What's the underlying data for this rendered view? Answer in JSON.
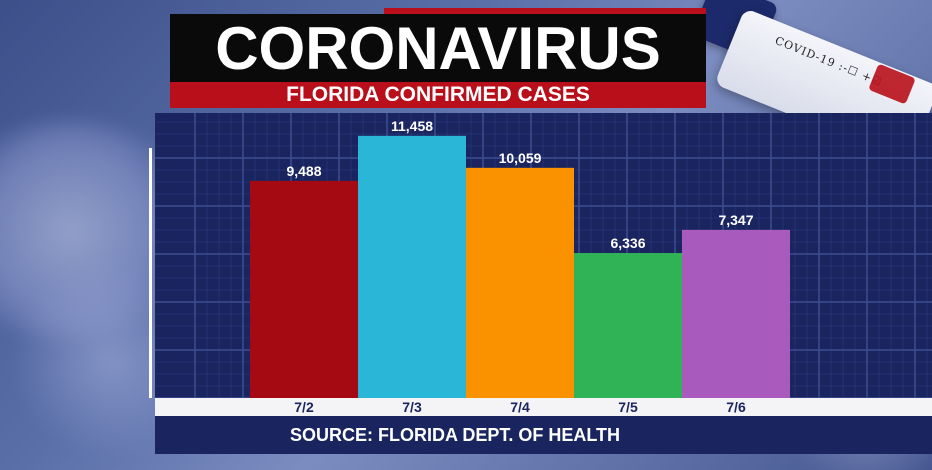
{
  "header": {
    "title": "CORONAVIRUS",
    "subtitle": "FLORIDA CONFIRMED CASES"
  },
  "decor": {
    "vial_label": "COVID-19 :-☐ +☑"
  },
  "footer": {
    "source": "SOURCE: FLORIDA DEPT. OF HEALTH"
  },
  "colors": {
    "banner_black": "#0a0a0a",
    "banner_red": "#b80f1a",
    "panel_navy": "#1a2560",
    "grid_line": "#3c4d93"
  },
  "chart_data": {
    "type": "bar",
    "title": "FLORIDA CONFIRMED CASES",
    "categories": [
      "7/2",
      "7/3",
      "7/4",
      "7/5",
      "7/6"
    ],
    "values": [
      9488,
      11458,
      10059,
      6336,
      7347
    ],
    "value_labels": [
      "9,488",
      "11,458",
      "10,059",
      "6,336",
      "7,347"
    ],
    "bar_colors": [
      "#a50a12",
      "#2ab6d6",
      "#fa9200",
      "#2fb356",
      "#a85bbd"
    ],
    "xlabel": "",
    "ylabel": "",
    "ylim": [
      0,
      11800
    ],
    "grid": true,
    "legend": "none"
  }
}
